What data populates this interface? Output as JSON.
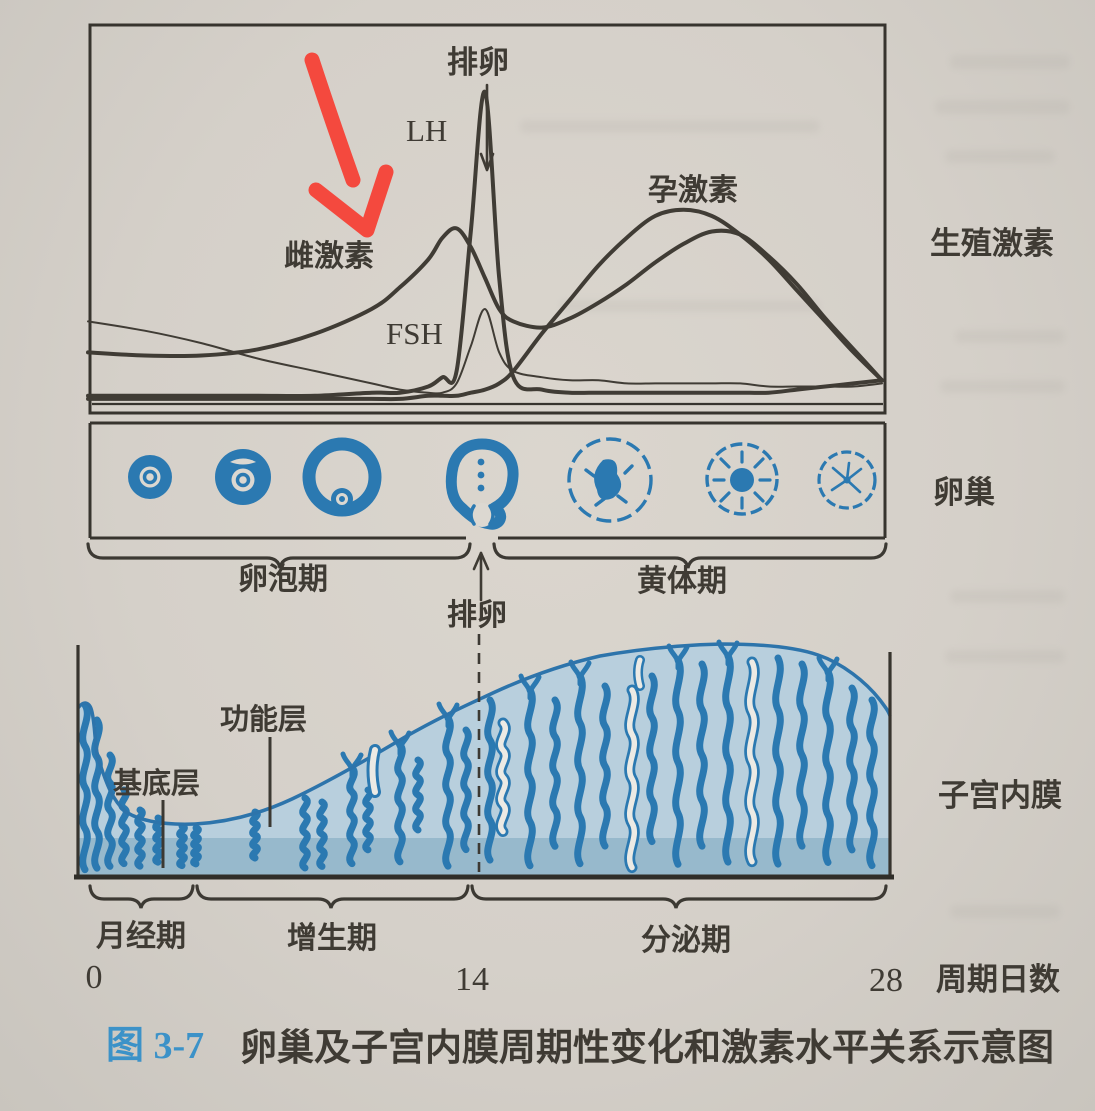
{
  "figure": {
    "hormone_panel": {
      "ovulation_top_label": "排卵",
      "lh_label": "LH",
      "estrogen_label": "雌激素",
      "fsh_label": "FSH",
      "progesterone_label": "孕激素",
      "right_axis_label": "生殖激素"
    },
    "ovary_row": {
      "right_label": "卵巢",
      "follicular_phase_label": "卵泡期",
      "ovulation_bottom_label": "排卵",
      "luteal_phase_label": "黄体期",
      "stage_icons": [
        "primordial-follicle-icon",
        "growing-follicle-icon",
        "mature-follicle-icon",
        "ovulating-follicle-icon",
        "early-corpus-luteum-icon",
        "mature-corpus-luteum-icon",
        "corpus-albicans-icon"
      ]
    },
    "endometrium_panel": {
      "functional_layer_label": "功能层",
      "basal_layer_label": "基底层",
      "right_label": "子宫内膜",
      "menstrual_phase_label": "月经期",
      "proliferative_phase_label": "增生期",
      "secretory_phase_label": "分泌期"
    },
    "day_axis": {
      "start": "0",
      "mid": "14",
      "end": "28",
      "unit_label": "周期日数"
    },
    "caption": {
      "number": "图 3-7",
      "title": "卵巢及子宫内膜周期性变化和激素水平关系示意图"
    },
    "annotation": {
      "type": "hand-drawn red arrow",
      "points_at": "雌激素"
    },
    "colors": {
      "ink": "#3f3b34",
      "drawing_blue": "#2b79b1",
      "endometrium_fill": "#b8cfdd",
      "basal_band_blue": "#97b9cc",
      "caption_blue": "#3c92c8",
      "annotation_red": "#f4493e",
      "paper": "#d5d0c9"
    }
  },
  "chart_data": {
    "type": "line",
    "title": "生殖激素 (schematic hormone levels over menstrual cycle)",
    "xlabel": "周期日数",
    "ylabel": "生殖激素",
    "x_range": [
      0,
      28
    ],
    "x": [
      0,
      2,
      4,
      6,
      8,
      10,
      11,
      12,
      12.5,
      13,
      13.5,
      14,
      14.5,
      15,
      16,
      17,
      18,
      19,
      20,
      21,
      22,
      23,
      24,
      25,
      26,
      27,
      28
    ],
    "units": "relative level 0-100 (no numeric axis shown in figure)",
    "series": [
      {
        "id": "estrogen",
        "name": "雌激素",
        "values": [
          16,
          15,
          15,
          17,
          22,
          30,
          37,
          46,
          53,
          56,
          50,
          40,
          30,
          26,
          24,
          27,
          32,
          38,
          45,
          51,
          55,
          54,
          47,
          38,
          27,
          17,
          7
        ]
      },
      {
        "id": "lh",
        "name": "LH",
        "values": [
          2,
          2,
          2,
          2,
          2,
          3,
          3,
          5,
          8,
          10,
          55,
          100,
          40,
          8,
          4,
          3,
          3,
          3,
          3,
          3,
          3,
          3,
          3,
          4,
          5,
          6,
          7
        ]
      },
      {
        "id": "fsh",
        "name": "FSH",
        "values": [
          26,
          23,
          19,
          14,
          10,
          6,
          4,
          3,
          3,
          6,
          18,
          30,
          16,
          10,
          8,
          7,
          7,
          6,
          6,
          6,
          6,
          6,
          5,
          5,
          5,
          5,
          6
        ]
      },
      {
        "id": "progesterone",
        "name": "孕激素",
        "values": [
          1,
          1,
          1,
          1,
          1,
          1,
          1,
          2,
          2,
          2,
          3,
          4,
          6,
          10,
          22,
          33,
          44,
          53,
          60,
          62,
          60,
          54,
          46,
          36,
          26,
          16,
          7
        ]
      }
    ],
    "annotations": [
      "排卵 at day 14 (LH peak)",
      "卵泡期 days 0-14",
      "黄体期 days 14-28",
      "月经期 days 0-4",
      "增生期 days 4-14",
      "分泌期 days 14-28"
    ],
    "legend_position": "labels beside curves",
    "grid": false
  }
}
